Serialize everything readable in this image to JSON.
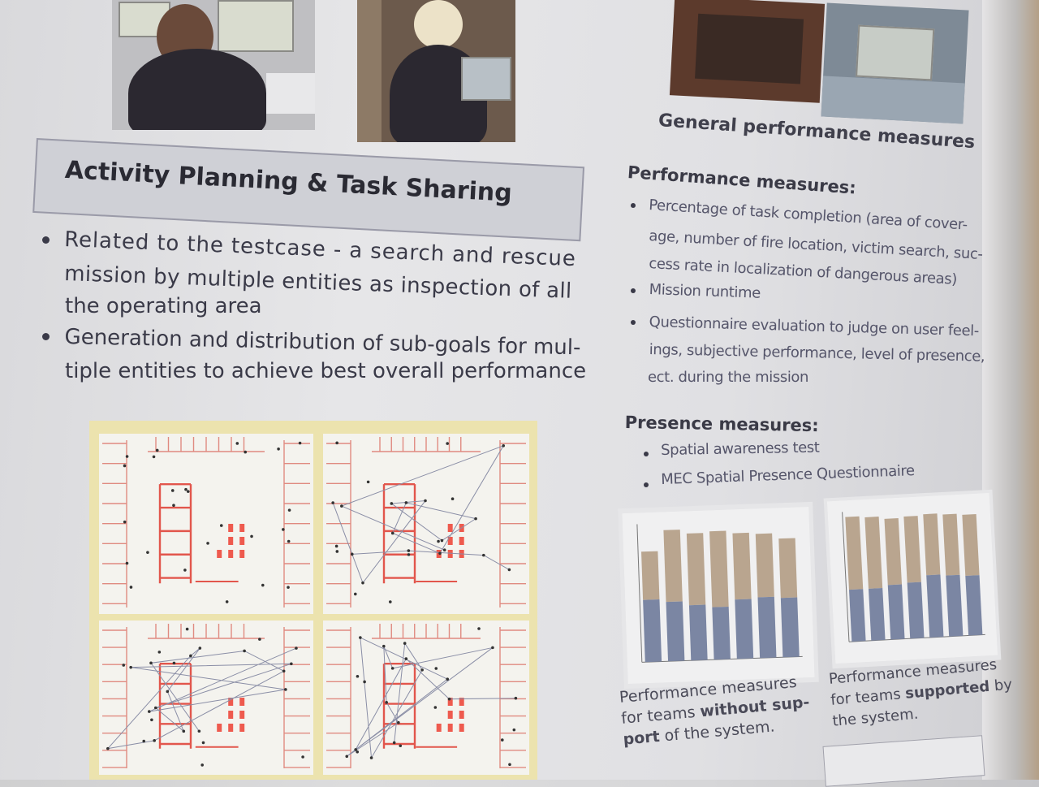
{
  "heading": "Activity Planning & Task Sharing",
  "bullets": [
    {
      "lines": [
        "Related to the testcase - a search and rescue",
        "mission by multiple entities as inspection of all",
        "the operating area"
      ]
    },
    {
      "lines": [
        "Generation and distribution of sub-goals for mul-",
        "tiple entities to achieve best overall performance"
      ]
    }
  ],
  "right_title": "General performance measures",
  "performance": {
    "heading": "Performance measures:",
    "items": [
      {
        "lines": [
          "Percentage of task completion (area of cover-",
          "age, number of fire location, victim search, suc-",
          "cess rate in localization of dangerous areas)"
        ]
      },
      {
        "lines": [
          "Mission runtime"
        ]
      },
      {
        "lines": [
          "Questionnaire evaluation to judge on user feel-",
          "ings, subjective performance, level of presence,",
          "ect. during the mission"
        ]
      }
    ]
  },
  "presence": {
    "heading": "Presence measures:",
    "items": [
      "Spatial awareness test",
      "MEC Spatial Presence Questionnaire"
    ]
  },
  "chart_data": [
    {
      "type": "bar",
      "series": [
        {
          "values": [
            0.45,
            0.43,
            0.4,
            0.38,
            0.43,
            0.44,
            0.43
          ]
        },
        {
          "values": [
            0.8,
            0.95,
            0.92,
            0.93,
            0.91,
            0.9,
            0.86
          ]
        }
      ],
      "colors": [
        "#7b86a3",
        "#b9a58f"
      ]
    },
    {
      "type": "bar",
      "series": [
        {
          "values": [
            0.4,
            0.4,
            0.42,
            0.43,
            0.48,
            0.47,
            0.46
          ]
        },
        {
          "values": [
            0.96,
            0.95,
            0.93,
            0.94,
            0.95,
            0.94,
            0.93
          ]
        }
      ],
      "colors": [
        "#7b86a3",
        "#b9a58f"
      ]
    }
  ],
  "captions": {
    "left": {
      "line1": "Performance measures",
      "line2a": "for teams ",
      "line2b": "without",
      "line2c": " sup-",
      "line3a": "port",
      "line3b": " of the system."
    },
    "right": {
      "line1": "Performance measures",
      "line2a": "for teams ",
      "line2b": "supported",
      "line2c": " by",
      "line3": "the system."
    }
  }
}
